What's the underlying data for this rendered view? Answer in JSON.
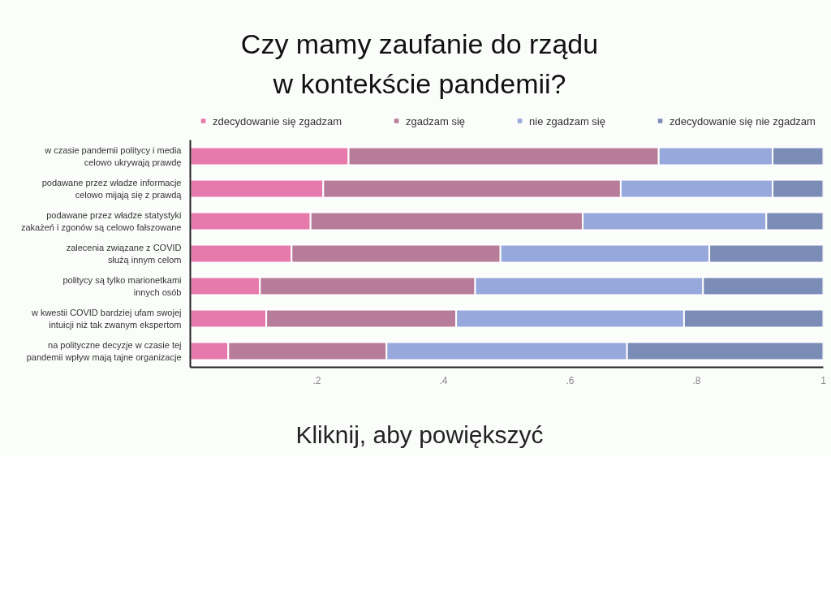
{
  "chart_data": {
    "type": "bar",
    "orientation": "horizontal",
    "stacked": true,
    "title": "Czy mamy zaufanie do rządu\nw kontekście pandemii?",
    "categories": [
      "w czasie pandemii politycy i media\ncelowo ukrywają prawdę",
      "podawane przez władze informacje\ncelowo mijają się z prawdą",
      "podawane przez władze statystyki\nzakażeń i zgonów są celowo fałszowane",
      "zalecenia związane z COVID\nsłużą innym celom",
      "politycy są tylko marionetkami\ninnych osób",
      "w kwestii COVID bardziej ufam swojej\nintuicji niż tak zwanym ekspertom",
      "na polityczne decyzje w czasie tej\npandemii wpływ mają tajne organizacje"
    ],
    "series": [
      {
        "name": "zdecydowanie się zgadzam",
        "color": "#e77aac",
        "values": [
          0.25,
          0.21,
          0.19,
          0.16,
          0.11,
          0.12,
          0.06
        ]
      },
      {
        "name": "zgadzam się",
        "color": "#b87c9b",
        "values": [
          0.49,
          0.47,
          0.43,
          0.33,
          0.34,
          0.3,
          0.25
        ]
      },
      {
        "name": "nie zgadzam się",
        "color": "#96a8dc",
        "values": [
          0.18,
          0.24,
          0.29,
          0.33,
          0.36,
          0.36,
          0.38
        ]
      },
      {
        "name": "zdecydowanie się nie zgadzam",
        "color": "#7b8cb6",
        "values": [
          0.08,
          0.08,
          0.09,
          0.18,
          0.19,
          0.22,
          0.31
        ]
      }
    ],
    "xlim": [
      0,
      1
    ],
    "xticks": [
      {
        "value": 0.2,
        "label": ".2"
      },
      {
        "value": 0.4,
        "label": ".4"
      },
      {
        "value": 0.6,
        "label": ".6"
      },
      {
        "value": 0.8,
        "label": ".8"
      },
      {
        "value": 1,
        "label": "1"
      }
    ],
    "grid": false,
    "legend": "top",
    "annotations": [
      "Kliknij, aby powiększyć"
    ]
  }
}
